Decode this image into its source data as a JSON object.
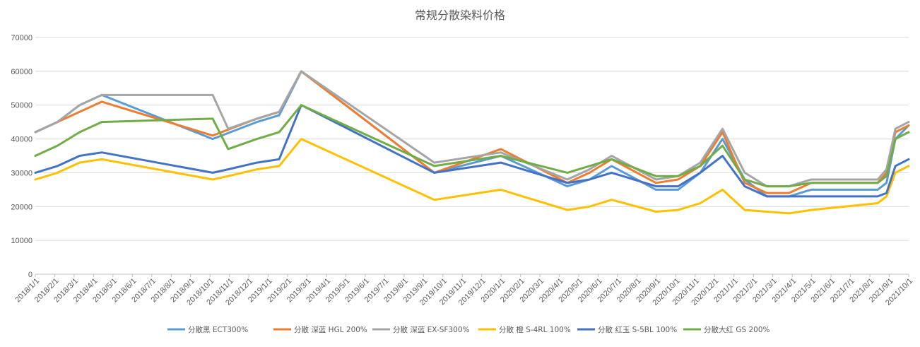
{
  "chart_data": {
    "type": "line",
    "title": "常规分散染料价格",
    "xlabel": "",
    "ylabel": "",
    "ylim": [
      0,
      70000
    ],
    "y_ticks": [
      0,
      10000,
      20000,
      30000,
      40000,
      50000,
      60000,
      70000
    ],
    "grid": "horizontal",
    "legend_position": "bottom",
    "categories": [
      "2018/1/1",
      "2018/2/1",
      "2018/3/1",
      "2018/4/1",
      "2018/5/1",
      "2018/6/1",
      "2018/7/1",
      "2018/8/1",
      "2018/9/1",
      "2018/10/1",
      "2018/11/1",
      "2018/12/1",
      "2019/1/1",
      "2019/2/1",
      "2019/3/1",
      "2019/4/1",
      "2019/5/1",
      "2019/6/1",
      "2019/7/1",
      "2019/8/1",
      "2019/9/1",
      "2019/10/1",
      "2019/11/1",
      "2019/12/1",
      "2020/1/1",
      "2020/2/1",
      "2020/3/1",
      "2020/4/1",
      "2020/5/1",
      "2020/6/1",
      "2020/7/1",
      "2020/8/1",
      "2020/9/1",
      "2020/10/1",
      "2020/11/1",
      "2020/12/1",
      "2021/1/1",
      "2021/2/1",
      "2021/3/1",
      "2021/4/1",
      "2021/5/1",
      "2021/6/1",
      "2021/7/1",
      "2021/8/1",
      "2021/9/1",
      "2021/10/1"
    ],
    "series": [
      {
        "name": "分散黑 ECT300%",
        "color": "#5B9BD5",
        "points": [
          [
            0,
            42000
          ],
          [
            0.5,
            45000
          ],
          [
            1,
            50000
          ],
          [
            1.5,
            53000
          ],
          [
            4,
            40000
          ],
          [
            5,
            45000
          ],
          [
            5.5,
            47000
          ],
          [
            6,
            60000
          ],
          [
            9,
            30000
          ],
          [
            10.5,
            35000
          ],
          [
            12,
            26000
          ],
          [
            12.5,
            28000
          ],
          [
            13,
            32000
          ],
          [
            14,
            25000
          ],
          [
            14.5,
            25000
          ],
          [
            15,
            30000
          ],
          [
            15.5,
            40000
          ],
          [
            16,
            28000
          ],
          [
            16.5,
            23000
          ],
          [
            17,
            23000
          ],
          [
            17.5,
            25000
          ],
          [
            19,
            25000
          ],
          [
            19.2,
            27000
          ],
          [
            19.4,
            40000
          ],
          [
            19.7,
            44000
          ]
        ]
      },
      {
        "name": "分散 深蓝 HGL 200%",
        "color": "#ED7D31",
        "points": [
          [
            0,
            42000
          ],
          [
            0.5,
            45000
          ],
          [
            1,
            48000
          ],
          [
            1.5,
            51000
          ],
          [
            4,
            41000
          ],
          [
            5,
            46000
          ],
          [
            5.5,
            48000
          ],
          [
            6,
            60000
          ],
          [
            9,
            30000
          ],
          [
            10.5,
            37000
          ],
          [
            12,
            27000
          ],
          [
            12.5,
            30000
          ],
          [
            13,
            34000
          ],
          [
            14,
            27000
          ],
          [
            14.5,
            28000
          ],
          [
            15,
            32000
          ],
          [
            15.5,
            42000
          ],
          [
            16,
            27000
          ],
          [
            16.5,
            24000
          ],
          [
            17,
            24000
          ],
          [
            17.5,
            27000
          ],
          [
            19,
            27000
          ],
          [
            19.2,
            30000
          ],
          [
            19.4,
            42000
          ],
          [
            19.7,
            44000
          ]
        ]
      },
      {
        "name": "分散 深蓝 EX-SF300%",
        "color": "#A5A5A5",
        "points": [
          [
            0,
            42000
          ],
          [
            0.5,
            45000
          ],
          [
            1,
            50000
          ],
          [
            1.5,
            53000
          ],
          [
            4,
            53000
          ],
          [
            4.35,
            43000
          ],
          [
            5,
            46000
          ],
          [
            5.5,
            48000
          ],
          [
            6,
            60000
          ],
          [
            9,
            33000
          ],
          [
            10.5,
            36000
          ],
          [
            12,
            28000
          ],
          [
            12.5,
            31000
          ],
          [
            13,
            35000
          ],
          [
            14,
            28000
          ],
          [
            14.5,
            29000
          ],
          [
            15,
            33000
          ],
          [
            15.5,
            43000
          ],
          [
            16,
            30000
          ],
          [
            16.5,
            26000
          ],
          [
            17,
            26000
          ],
          [
            17.5,
            28000
          ],
          [
            19,
            28000
          ],
          [
            19.2,
            31000
          ],
          [
            19.4,
            43000
          ],
          [
            19.7,
            45000
          ]
        ]
      },
      {
        "name": "分散 橙 S-4RL 100%",
        "color": "#FFC000",
        "points": [
          [
            0,
            28000
          ],
          [
            0.5,
            30000
          ],
          [
            1,
            33000
          ],
          [
            1.5,
            34000
          ],
          [
            4,
            28000
          ],
          [
            4.35,
            29000
          ],
          [
            5,
            31000
          ],
          [
            5.5,
            32000
          ],
          [
            6,
            40000
          ],
          [
            9,
            22000
          ],
          [
            10.5,
            25000
          ],
          [
            12,
            19000
          ],
          [
            12.5,
            20000
          ],
          [
            13,
            22000
          ],
          [
            14,
            18500
          ],
          [
            14.5,
            19000
          ],
          [
            15,
            21000
          ],
          [
            15.5,
            25000
          ],
          [
            16,
            19000
          ],
          [
            17,
            18000
          ],
          [
            17.5,
            19000
          ],
          [
            19,
            21000
          ],
          [
            19.2,
            23000
          ],
          [
            19.4,
            30000
          ],
          [
            19.7,
            32000
          ]
        ]
      },
      {
        "name": "分散 红玉 S-5BL 100%",
        "color": "#4472C4",
        "points": [
          [
            0,
            30000
          ],
          [
            0.5,
            32000
          ],
          [
            1,
            35000
          ],
          [
            1.5,
            36000
          ],
          [
            4,
            30000
          ],
          [
            4.35,
            31000
          ],
          [
            5,
            33000
          ],
          [
            5.5,
            34000
          ],
          [
            6,
            50000
          ],
          [
            9,
            30000
          ],
          [
            10.5,
            33000
          ],
          [
            12,
            27000
          ],
          [
            12.5,
            28000
          ],
          [
            13,
            30000
          ],
          [
            14,
            26000
          ],
          [
            14.5,
            26000
          ],
          [
            15,
            30000
          ],
          [
            15.5,
            35000
          ],
          [
            16,
            26000
          ],
          [
            16.5,
            23000
          ],
          [
            17,
            23000
          ],
          [
            17.5,
            23000
          ],
          [
            19,
            23000
          ],
          [
            19.2,
            24000
          ],
          [
            19.4,
            32000
          ],
          [
            19.7,
            34000
          ]
        ]
      },
      {
        "name": "分散大红 GS 200%",
        "color": "#70AD47",
        "points": [
          [
            0,
            35000
          ],
          [
            0.5,
            38000
          ],
          [
            1,
            42000
          ],
          [
            1.5,
            45000
          ],
          [
            4,
            46000
          ],
          [
            4.35,
            37000
          ],
          [
            5,
            40000
          ],
          [
            5.5,
            42000
          ],
          [
            6,
            50000
          ],
          [
            9,
            32000
          ],
          [
            10.5,
            35000
          ],
          [
            12,
            30000
          ],
          [
            12.5,
            32000
          ],
          [
            13,
            34000
          ],
          [
            14,
            29000
          ],
          [
            14.5,
            29000
          ],
          [
            15,
            32000
          ],
          [
            15.5,
            38000
          ],
          [
            16,
            28000
          ],
          [
            16.5,
            26000
          ],
          [
            17,
            26000
          ],
          [
            17.5,
            27000
          ],
          [
            19,
            27000
          ],
          [
            19.2,
            29000
          ],
          [
            19.4,
            40000
          ],
          [
            19.7,
            42000
          ]
        ]
      }
    ]
  }
}
